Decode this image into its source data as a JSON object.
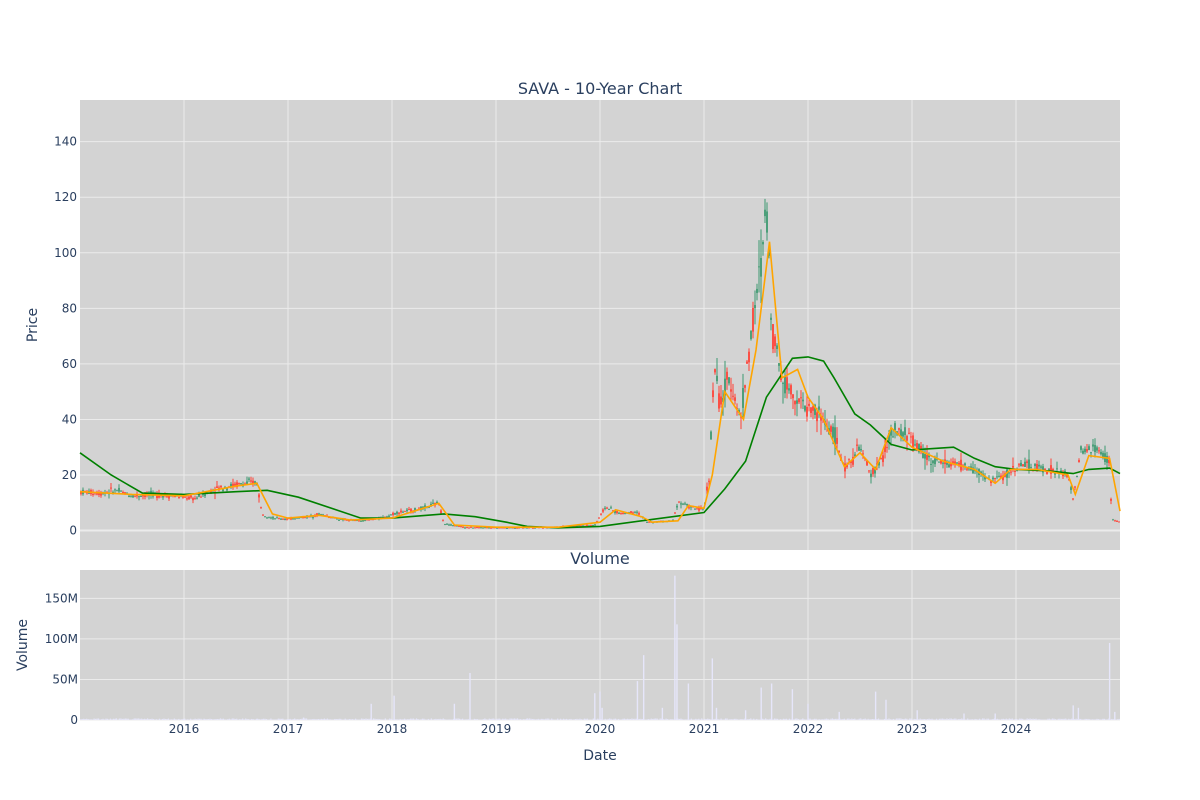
{
  "colors": {
    "plot_bg": "#d3d3d3",
    "grid": "#ebebeb",
    "candle_up": "#3d9970",
    "candle_down": "#ff4136",
    "ma_short": "#ffa500",
    "ma_long": "#008000",
    "volume": "#e6e6fa",
    "text": "#2a3f5f"
  },
  "chart_data": {
    "type": "candlestick",
    "title": "SAVA - 10-Year Chart",
    "price_panel": {
      "ylabel": "Price",
      "ylim": [
        -7,
        155
      ],
      "yticks": [
        0,
        20,
        40,
        60,
        80,
        100,
        120,
        140
      ],
      "grid": true
    },
    "volume_panel": {
      "title": "Volume",
      "ylabel": "Volume",
      "ylim": [
        0,
        185000000
      ],
      "yticks": [
        0,
        50000000,
        100000000,
        150000000
      ],
      "ytick_labels": [
        "0",
        "50M",
        "100M",
        "150M"
      ],
      "grid": true
    },
    "xlabel": "Date",
    "x_ticks": [
      "2016",
      "2017",
      "2018",
      "2019",
      "2020",
      "2021",
      "2022",
      "2023",
      "2024"
    ],
    "xlim": [
      2015.0,
      2025.0
    ],
    "price_series": [
      [
        2015.0,
        14
      ],
      [
        2015.2,
        13.5
      ],
      [
        2015.35,
        14.5
      ],
      [
        2015.5,
        12.5
      ],
      [
        2015.7,
        13
      ],
      [
        2015.9,
        12.5
      ],
      [
        2016.1,
        11.5
      ],
      [
        2016.3,
        15
      ],
      [
        2016.5,
        16.5
      ],
      [
        2016.7,
        17.5
      ],
      [
        2016.75,
        6
      ],
      [
        2016.85,
        4.5
      ],
      [
        2017.0,
        4.2
      ],
      [
        2017.2,
        5
      ],
      [
        2017.3,
        6
      ],
      [
        2017.5,
        4
      ],
      [
        2017.7,
        3.5
      ],
      [
        2017.9,
        4.5
      ],
      [
        2018.05,
        6.5
      ],
      [
        2018.3,
        8
      ],
      [
        2018.45,
        10
      ],
      [
        2018.5,
        2.5
      ],
      [
        2018.7,
        1.2
      ],
      [
        2019.0,
        1.0
      ],
      [
        2019.5,
        1.2
      ],
      [
        2019.95,
        2
      ],
      [
        2020.05,
        8.5
      ],
      [
        2020.2,
        6
      ],
      [
        2020.35,
        7
      ],
      [
        2020.45,
        3
      ],
      [
        2020.7,
        3.5
      ],
      [
        2020.75,
        10.5
      ],
      [
        2020.9,
        8
      ],
      [
        2021.0,
        7.5
      ],
      [
        2021.05,
        20
      ],
      [
        2021.1,
        60
      ],
      [
        2021.15,
        45
      ],
      [
        2021.25,
        55
      ],
      [
        2021.35,
        40
      ],
      [
        2021.45,
        70
      ],
      [
        2021.55,
        95
      ],
      [
        2021.6,
        120
      ],
      [
        2021.65,
        75
      ],
      [
        2021.75,
        55
      ],
      [
        2021.85,
        50
      ],
      [
        2021.95,
        45
      ],
      [
        2022.1,
        42
      ],
      [
        2022.25,
        35
      ],
      [
        2022.35,
        22
      ],
      [
        2022.5,
        30
      ],
      [
        2022.6,
        20
      ],
      [
        2022.7,
        25
      ],
      [
        2022.8,
        35
      ],
      [
        2022.95,
        35
      ],
      [
        2023.05,
        30
      ],
      [
        2023.2,
        25
      ],
      [
        2023.4,
        24
      ],
      [
        2023.6,
        22
      ],
      [
        2023.75,
        18
      ],
      [
        2023.9,
        20
      ],
      [
        2024.05,
        24
      ],
      [
        2024.3,
        22
      ],
      [
        2024.5,
        20
      ],
      [
        2024.55,
        11
      ],
      [
        2024.62,
        28
      ],
      [
        2024.75,
        30
      ],
      [
        2024.9,
        25
      ],
      [
        2024.92,
        4
      ],
      [
        2025.0,
        3
      ]
    ],
    "ma_short": [
      [
        2015.0,
        14
      ],
      [
        2015.5,
        13
      ],
      [
        2016.0,
        12.5
      ],
      [
        2016.5,
        16
      ],
      [
        2016.7,
        17
      ],
      [
        2016.85,
        6
      ],
      [
        2017.0,
        4.5
      ],
      [
        2017.3,
        5.5
      ],
      [
        2017.6,
        3.8
      ],
      [
        2018.0,
        4.5
      ],
      [
        2018.3,
        8
      ],
      [
        2018.45,
        9.8
      ],
      [
        2018.6,
        2
      ],
      [
        2019.0,
        1.2
      ],
      [
        2019.6,
        1.2
      ],
      [
        2020.0,
        3
      ],
      [
        2020.15,
        7.5
      ],
      [
        2020.4,
        5
      ],
      [
        2020.5,
        3
      ],
      [
        2020.75,
        3.5
      ],
      [
        2020.85,
        9
      ],
      [
        2021.0,
        8
      ],
      [
        2021.08,
        20
      ],
      [
        2021.2,
        50
      ],
      [
        2021.38,
        40
      ],
      [
        2021.5,
        65
      ],
      [
        2021.63,
        104
      ],
      [
        2021.75,
        55
      ],
      [
        2021.9,
        58
      ],
      [
        2022.0,
        48
      ],
      [
        2022.15,
        40
      ],
      [
        2022.35,
        23
      ],
      [
        2022.5,
        28
      ],
      [
        2022.65,
        22
      ],
      [
        2022.8,
        37
      ],
      [
        2023.0,
        30
      ],
      [
        2023.3,
        25
      ],
      [
        2023.6,
        22
      ],
      [
        2023.8,
        17
      ],
      [
        2023.95,
        22
      ],
      [
        2024.2,
        22
      ],
      [
        2024.5,
        20
      ],
      [
        2024.57,
        13
      ],
      [
        2024.7,
        27
      ],
      [
        2024.9,
        26
      ],
      [
        2025.0,
        7
      ]
    ],
    "ma_long": [
      [
        2015.0,
        28
      ],
      [
        2015.3,
        20
      ],
      [
        2015.6,
        13.5
      ],
      [
        2016.0,
        13
      ],
      [
        2016.5,
        14
      ],
      [
        2016.8,
        14.5
      ],
      [
        2017.1,
        12
      ],
      [
        2017.5,
        7
      ],
      [
        2017.7,
        4.5
      ],
      [
        2018.0,
        4.5
      ],
      [
        2018.5,
        6
      ],
      [
        2018.8,
        5
      ],
      [
        2019.1,
        3
      ],
      [
        2019.3,
        1.5
      ],
      [
        2019.6,
        1
      ],
      [
        2020.0,
        1.5
      ],
      [
        2020.5,
        4
      ],
      [
        2021.0,
        6.5
      ],
      [
        2021.2,
        15
      ],
      [
        2021.4,
        25
      ],
      [
        2021.6,
        48
      ],
      [
        2021.85,
        62
      ],
      [
        2022.0,
        62.5
      ],
      [
        2022.15,
        61
      ],
      [
        2022.25,
        55
      ],
      [
        2022.45,
        42
      ],
      [
        2022.6,
        38
      ],
      [
        2022.8,
        31
      ],
      [
        2023.0,
        29
      ],
      [
        2023.2,
        29.5
      ],
      [
        2023.4,
        30
      ],
      [
        2023.6,
        26
      ],
      [
        2023.8,
        23
      ],
      [
        2024.0,
        22
      ],
      [
        2024.3,
        21.5
      ],
      [
        2024.55,
        20.5
      ],
      [
        2024.7,
        22
      ],
      [
        2024.9,
        22.5
      ],
      [
        2025.0,
        20.5
      ]
    ],
    "volume_spikes": [
      [
        2015.35,
        2000000
      ],
      [
        2016.2,
        1000000
      ],
      [
        2016.7,
        1500000
      ],
      [
        2017.15,
        3000000
      ],
      [
        2017.8,
        20000000
      ],
      [
        2018.02,
        30000000
      ],
      [
        2018.6,
        20000000
      ],
      [
        2018.75,
        58000000
      ],
      [
        2019.3,
        2000000
      ],
      [
        2019.95,
        33000000
      ],
      [
        2020.0,
        35000000
      ],
      [
        2020.02,
        15000000
      ],
      [
        2020.36,
        48000000
      ],
      [
        2020.42,
        80000000
      ],
      [
        2020.6,
        15000000
      ],
      [
        2020.72,
        178000000
      ],
      [
        2020.74,
        118000000
      ],
      [
        2020.85,
        45000000
      ],
      [
        2021.08,
        76000000
      ],
      [
        2021.12,
        15000000
      ],
      [
        2021.4,
        12000000
      ],
      [
        2021.55,
        40000000
      ],
      [
        2021.65,
        45000000
      ],
      [
        2021.85,
        38000000
      ],
      [
        2022.0,
        20000000
      ],
      [
        2022.3,
        10000000
      ],
      [
        2022.65,
        35000000
      ],
      [
        2022.75,
        25000000
      ],
      [
        2023.05,
        12000000
      ],
      [
        2023.5,
        8000000
      ],
      [
        2023.8,
        8000000
      ],
      [
        2024.55,
        18000000
      ],
      [
        2024.6,
        15000000
      ],
      [
        2024.9,
        95000000
      ],
      [
        2024.95,
        10000000
      ]
    ]
  }
}
